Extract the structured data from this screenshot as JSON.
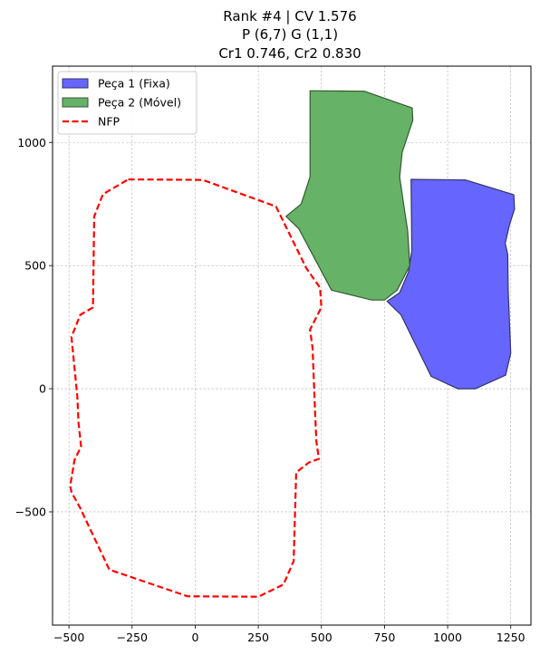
{
  "chart_data": {
    "type": "line",
    "title_lines": [
      "Rank #4 | CV 1.576",
      "P (6,7) G (1,1)",
      "Cr1 0.746, Cr2 0.830"
    ],
    "xlim": [
      -565,
      1330
    ],
    "ylim": [
      -960,
      1310
    ],
    "xticks": [
      -500,
      -250,
      0,
      250,
      500,
      750,
      1000,
      1250
    ],
    "xtick_labels": [
      "−500",
      "−250",
      "0",
      "250",
      "500",
      "750",
      "1000",
      "1250"
    ],
    "yticks": [
      -500,
      0,
      500,
      1000
    ],
    "ytick_labels": [
      "−500",
      "0",
      "500",
      "1000"
    ],
    "grid": true,
    "legend_position": "top-left",
    "series": [
      {
        "name": "Peça 1 (Fixa)",
        "kind": "polygon",
        "fill": "#6666ff",
        "stroke": "#333366",
        "points": [
          [
            855,
            850
          ],
          [
            1070,
            848
          ],
          [
            1262,
            788
          ],
          [
            1265,
            730
          ],
          [
            1245,
            665
          ],
          [
            1228,
            590
          ],
          [
            1238,
            545
          ],
          [
            1240,
            400
          ],
          [
            1250,
            145
          ],
          [
            1230,
            55
          ],
          [
            1110,
            0
          ],
          [
            1040,
            0
          ],
          [
            935,
            50
          ],
          [
            815,
            300
          ],
          [
            760,
            355
          ],
          [
            810,
            390
          ],
          [
            845,
            475
          ],
          [
            858,
            560
          ],
          [
            855,
            850
          ]
        ]
      },
      {
        "name": "Peça 2 (Móvel)",
        "kind": "polygon",
        "fill": "#66b266",
        "stroke": "#335933",
        "points": [
          [
            455,
            1210
          ],
          [
            670,
            1208
          ],
          [
            860,
            1140
          ],
          [
            862,
            1090
          ],
          [
            820,
            960
          ],
          [
            810,
            860
          ],
          [
            828,
            735
          ],
          [
            842,
            640
          ],
          [
            850,
            500
          ],
          [
            800,
            400
          ],
          [
            750,
            360
          ],
          [
            700,
            360
          ],
          [
            540,
            400
          ],
          [
            410,
            650
          ],
          [
            360,
            700
          ],
          [
            420,
            750
          ],
          [
            455,
            860
          ],
          [
            455,
            1210
          ]
        ]
      },
      {
        "name": "NFP",
        "kind": "closed-line",
        "stroke": "#ff0000",
        "points": [
          [
            -265,
            850
          ],
          [
            30,
            848
          ],
          [
            320,
            740
          ],
          [
            440,
            490
          ],
          [
            495,
            410
          ],
          [
            500,
            330
          ],
          [
            455,
            240
          ],
          [
            465,
            165
          ],
          [
            475,
            -100
          ],
          [
            480,
            -215
          ],
          [
            490,
            -285
          ],
          [
            450,
            -300
          ],
          [
            400,
            -340
          ],
          [
            390,
            -700
          ],
          [
            350,
            -795
          ],
          [
            250,
            -845
          ],
          [
            -30,
            -843
          ],
          [
            -340,
            -735
          ],
          [
            -455,
            -485
          ],
          [
            -490,
            -420
          ],
          [
            -495,
            -395
          ],
          [
            -478,
            -290
          ],
          [
            -452,
            -235
          ],
          [
            -462,
            -140
          ],
          [
            -467,
            -30
          ],
          [
            -490,
            210
          ],
          [
            -455,
            300
          ],
          [
            -405,
            330
          ],
          [
            -400,
            700
          ],
          [
            -365,
            790
          ],
          [
            -265,
            850
          ]
        ]
      }
    ]
  }
}
